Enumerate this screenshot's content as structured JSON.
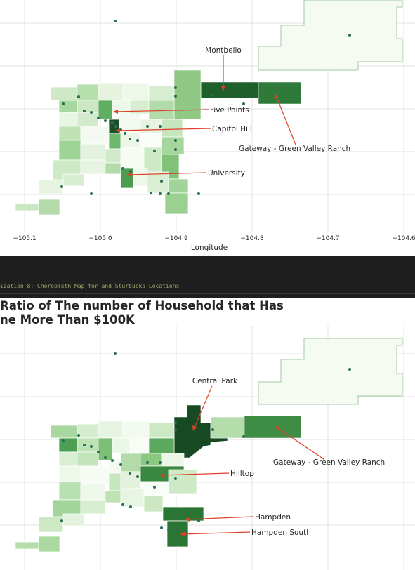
{
  "page": {
    "cell_caption": "ization 8: Choropleth Map for and Sturbucks Locations",
    "colors": {
      "cell_background": "#1f1f1f",
      "grid": "#e1e1e1",
      "annotation_arrow": "#e0402b",
      "store_dot": "#2b6e56"
    }
  },
  "chart_data": [
    {
      "type": "choropleth",
      "title": "",
      "xlabel": "Longitude",
      "ylabel": "",
      "xticks": [
        "−105.1",
        "−105.0",
        "−104.9",
        "−104.8",
        "−104.7",
        "−104.6"
      ],
      "xlim": [
        -105.1,
        -104.6
      ],
      "grid": true,
      "colormap": "Greens",
      "annotations": [
        {
          "label": "Montbello",
          "lon": -104.84,
          "lat": 39.78
        },
        {
          "label": "Five Points",
          "lon": -104.98,
          "lat": 39.755
        },
        {
          "label": "Capitol Hill",
          "lon": -104.98,
          "lat": 39.73
        },
        {
          "label": "Gateway - Green Valley Ranch",
          "lon": -104.77,
          "lat": 39.79
        },
        {
          "label": "University",
          "lon": -104.96,
          "lat": 39.68
        }
      ]
    },
    {
      "type": "choropleth",
      "title": "Ratio of The number of Household that Has\nne More Than $100K",
      "xlabel": "",
      "ylabel": "",
      "xticks": [],
      "grid": true,
      "colormap": "Greens",
      "annotations": [
        {
          "label": "Central Park",
          "lon": -104.88,
          "lat": 39.78
        },
        {
          "label": "Gateway - Green Valley Ranch",
          "lon": -104.77,
          "lat": 39.79
        },
        {
          "label": "Hilltop",
          "lon": -104.93,
          "lat": 39.715
        },
        {
          "label": "Hampden",
          "lon": -104.9,
          "lat": 39.655
        },
        {
          "label": "Hampden South",
          "lon": -104.9,
          "lat": 39.64
        }
      ]
    }
  ]
}
